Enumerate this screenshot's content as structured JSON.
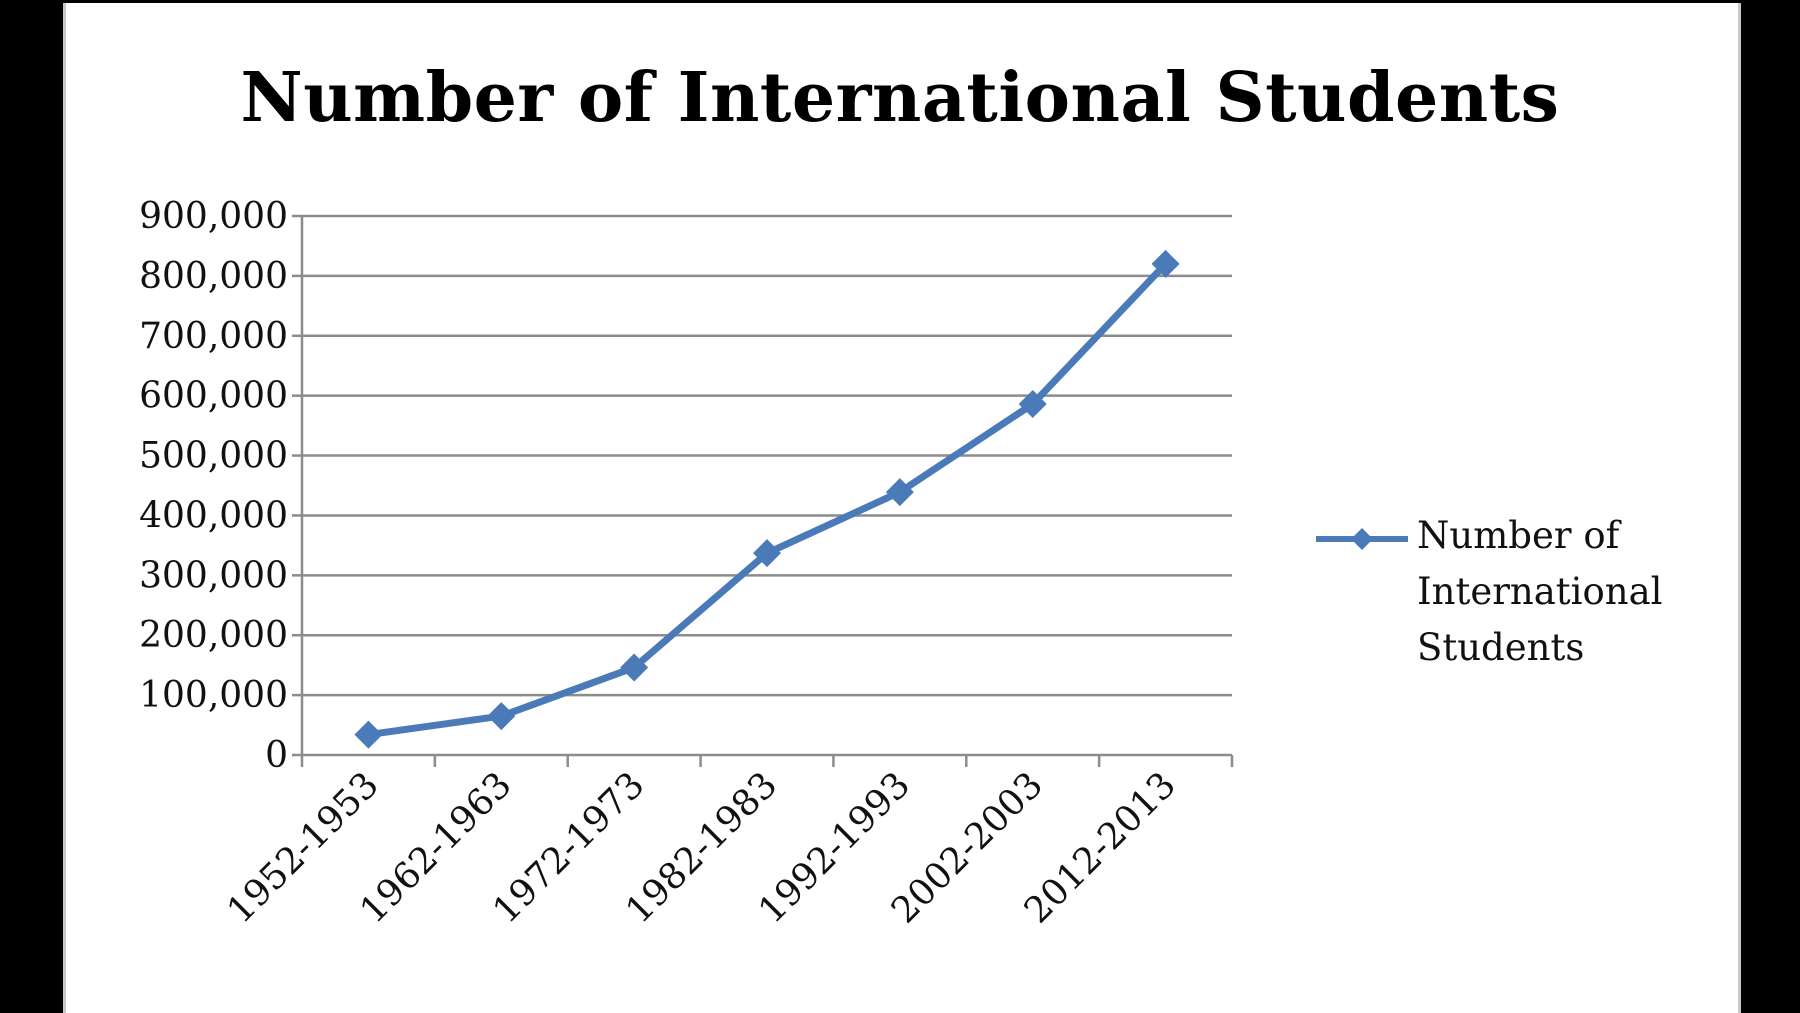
{
  "chart_data": {
    "type": "line",
    "title": "Number of International Students",
    "xlabel": "",
    "ylabel": "",
    "categories": [
      "1952-1953",
      "1962-1963",
      "1972-1973",
      "1982-1983",
      "1992-1993",
      "2002-2003",
      "2012-2013"
    ],
    "series": [
      {
        "name": "Number of International Students",
        "values": [
          34000,
          65000,
          146000,
          337000,
          439000,
          586000,
          820000
        ],
        "color": "#4a7ab8",
        "marker": "diamond"
      }
    ],
    "ylim": [
      0,
      900000
    ],
    "yticks": [
      0,
      100000,
      200000,
      300000,
      400000,
      500000,
      600000,
      700000,
      800000,
      900000
    ],
    "ytick_labels": [
      "0",
      "100,000",
      "200,000",
      "300,000",
      "400,000",
      "500,000",
      "600,000",
      "700,000",
      "800,000",
      "900,000"
    ],
    "grid": true,
    "legend_position": "right"
  }
}
